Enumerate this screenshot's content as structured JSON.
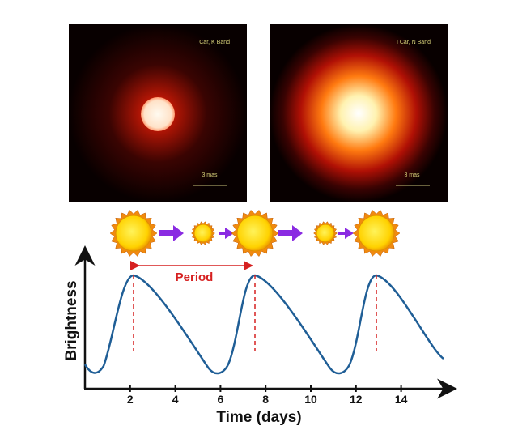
{
  "images": [
    {
      "label": "I Car, K Band",
      "scale": "3 mas"
    },
    {
      "label": "I Car, N Band",
      "scale": "3 mas"
    }
  ],
  "diagram": {
    "x_label": "Time (days)",
    "y_label": "Brightness",
    "period_label": "Period",
    "xticks": [
      2,
      4,
      6,
      8,
      10,
      12,
      14
    ]
  }
}
